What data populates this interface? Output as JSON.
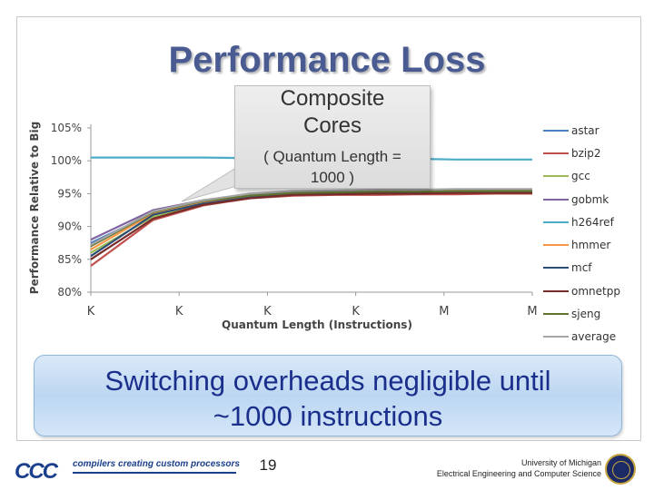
{
  "title": "Performance Loss",
  "callout": {
    "line1": "Composite",
    "line2": "Cores",
    "line3": "( Quantum Length =",
    "line4": "1000 )"
  },
  "banner": {
    "line1": "Switching overheads negligible until",
    "line2": "~1000 instructions"
  },
  "footer": {
    "logo_mark": "CCC",
    "logo_text": "compilers creating custom processors",
    "page_number": "19",
    "university_line1": "University of Michigan",
    "university_line2": "Electrical Engineering and Computer Science"
  },
  "chart_data": {
    "type": "line",
    "title": "",
    "xlabel": "Quantum Length (Instructions)",
    "ylabel": "Performance Relative to Big",
    "ylim": [
      80,
      105
    ],
    "y_ticks": [
      "80%",
      "85%",
      "90%",
      "95%",
      "100%",
      "105%"
    ],
    "x_tick_labels": [
      "K",
      "K",
      "K",
      "K",
      "M",
      "M"
    ],
    "legend_position": "right",
    "series": [
      {
        "name": "astar",
        "color": "#4f81bd",
        "values": [
          87.5,
          92.0,
          93.6,
          94.5,
          95.0,
          95.1,
          95.1,
          95.2,
          95.2,
          95.2,
          95.3
        ]
      },
      {
        "name": "bzip2",
        "color": "#c0504d",
        "values": [
          84.0,
          91.0,
          93.2,
          94.3,
          94.7,
          94.8,
          94.8,
          94.9,
          94.9,
          95.0,
          95.0
        ]
      },
      {
        "name": "gcc",
        "color": "#9bbb59",
        "values": [
          86.0,
          91.5,
          93.5,
          94.5,
          95.0,
          95.1,
          95.2,
          95.2,
          95.3,
          95.3,
          95.3
        ]
      },
      {
        "name": "gobmk",
        "color": "#8064a2",
        "values": [
          88.0,
          92.5,
          94.0,
          94.8,
          95.2,
          95.3,
          95.4,
          95.4,
          95.5,
          95.5,
          95.5
        ]
      },
      {
        "name": "h264ref",
        "color": "#4bacc6",
        "values": [
          100.5,
          100.5,
          100.5,
          100.4,
          100.4,
          100.3,
          100.3,
          100.3,
          100.2,
          100.2,
          100.2
        ]
      },
      {
        "name": "hmmer",
        "color": "#f79646",
        "values": [
          86.5,
          92.0,
          93.8,
          94.6,
          95.0,
          95.1,
          95.2,
          95.2,
          95.2,
          95.3,
          95.3
        ]
      },
      {
        "name": "mcf",
        "color": "#2c4d75",
        "values": [
          85.5,
          91.8,
          93.5,
          94.4,
          94.9,
          95.0,
          95.1,
          95.1,
          95.2,
          95.2,
          95.2
        ]
      },
      {
        "name": "omnetpp",
        "color": "#772c2a",
        "values": [
          85.0,
          91.2,
          93.3,
          94.3,
          94.8,
          94.9,
          95.0,
          95.0,
          95.1,
          95.1,
          95.1
        ]
      },
      {
        "name": "sjeng",
        "color": "#5f7530",
        "values": [
          87.0,
          92.2,
          93.9,
          94.7,
          95.1,
          95.2,
          95.3,
          95.3,
          95.4,
          95.4,
          95.4
        ]
      },
      {
        "name": "average",
        "color": "#a5a5a5",
        "values": [
          87.2,
          92.3,
          94.0,
          95.0,
          95.4,
          95.5,
          95.6,
          95.6,
          95.7,
          95.7,
          95.7
        ]
      }
    ]
  }
}
